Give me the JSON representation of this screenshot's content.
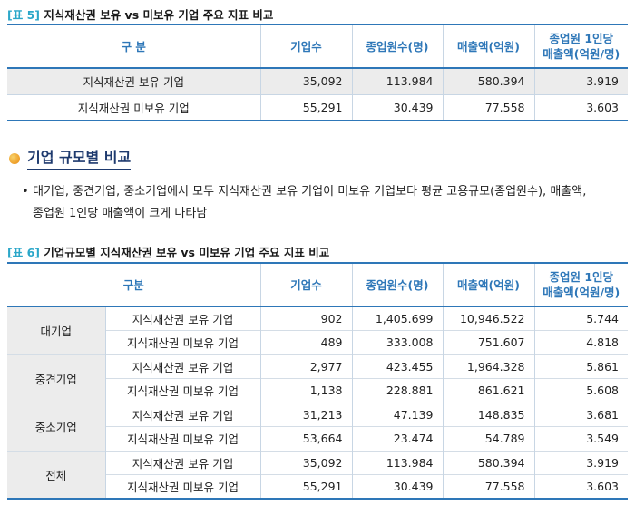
{
  "table5": {
    "tag": "[표 5]",
    "title": "지식재산권 보유 vs 미보유 기업 주요 지표 비교",
    "headers": [
      "구 분",
      "기업수",
      "종업원수(명)",
      "매출액(억원)",
      "종업원 1인당",
      "매출액(억원/명)"
    ],
    "rows": [
      {
        "label": "지식재산권 보유 기업",
        "firms": "35,092",
        "employees": "113.984",
        "sales": "580.394",
        "per": "3.919"
      },
      {
        "label": "지식재산권 미보유 기업",
        "firms": "55,291",
        "employees": "30.439",
        "sales": "77.558",
        "per": "3.603"
      }
    ]
  },
  "section": {
    "title": "기업 규모별 비교",
    "bullet_mark": "•",
    "bullet_line1": "대기업, 중견기업, 중소기업에서 모두 지식재산권 보유 기업이 미보유 기업보다 평균 고용규모(종업원수), 매출액,",
    "bullet_line2": "종업원 1인당 매출액이 크게 나타남"
  },
  "table6": {
    "tag": "[표 6]",
    "title": "기업규모별 지식재산권 보유 vs 미보유 기업 주요 지표 비교",
    "headers": [
      "구분",
      "기업수",
      "종업원수(명)",
      "매출액(억원)",
      "종업원 1인당",
      "매출액(억원/명)"
    ],
    "groups": [
      {
        "name": "대기업",
        "rows": [
          {
            "label": "지식재산권 보유 기업",
            "firms": "902",
            "employees": "1,405.699",
            "sales": "10,946.522",
            "per": "5.744"
          },
          {
            "label": "지식재산권 미보유 기업",
            "firms": "489",
            "employees": "333.008",
            "sales": "751.607",
            "per": "4.818"
          }
        ]
      },
      {
        "name": "중견기업",
        "rows": [
          {
            "label": "지식재산권 보유 기업",
            "firms": "2,977",
            "employees": "423.455",
            "sales": "1,964.328",
            "per": "5.861"
          },
          {
            "label": "지식재산권 미보유 기업",
            "firms": "1,138",
            "employees": "228.881",
            "sales": "861.621",
            "per": "5.608"
          }
        ]
      },
      {
        "name": "중소기업",
        "rows": [
          {
            "label": "지식재산권 보유 기업",
            "firms": "31,213",
            "employees": "47.139",
            "sales": "148.835",
            "per": "3.681"
          },
          {
            "label": "지식재산권 미보유 기업",
            "firms": "53,664",
            "employees": "23.474",
            "sales": "54.789",
            "per": "3.549"
          }
        ]
      },
      {
        "name": "전체",
        "rows": [
          {
            "label": "지식재산권 보유 기업",
            "firms": "35,092",
            "employees": "113.984",
            "sales": "580.394",
            "per": "3.919"
          },
          {
            "label": "지식재산권 미보유 기업",
            "firms": "55,291",
            "employees": "30.439",
            "sales": "77.558",
            "per": "3.603"
          }
        ]
      }
    ]
  }
}
